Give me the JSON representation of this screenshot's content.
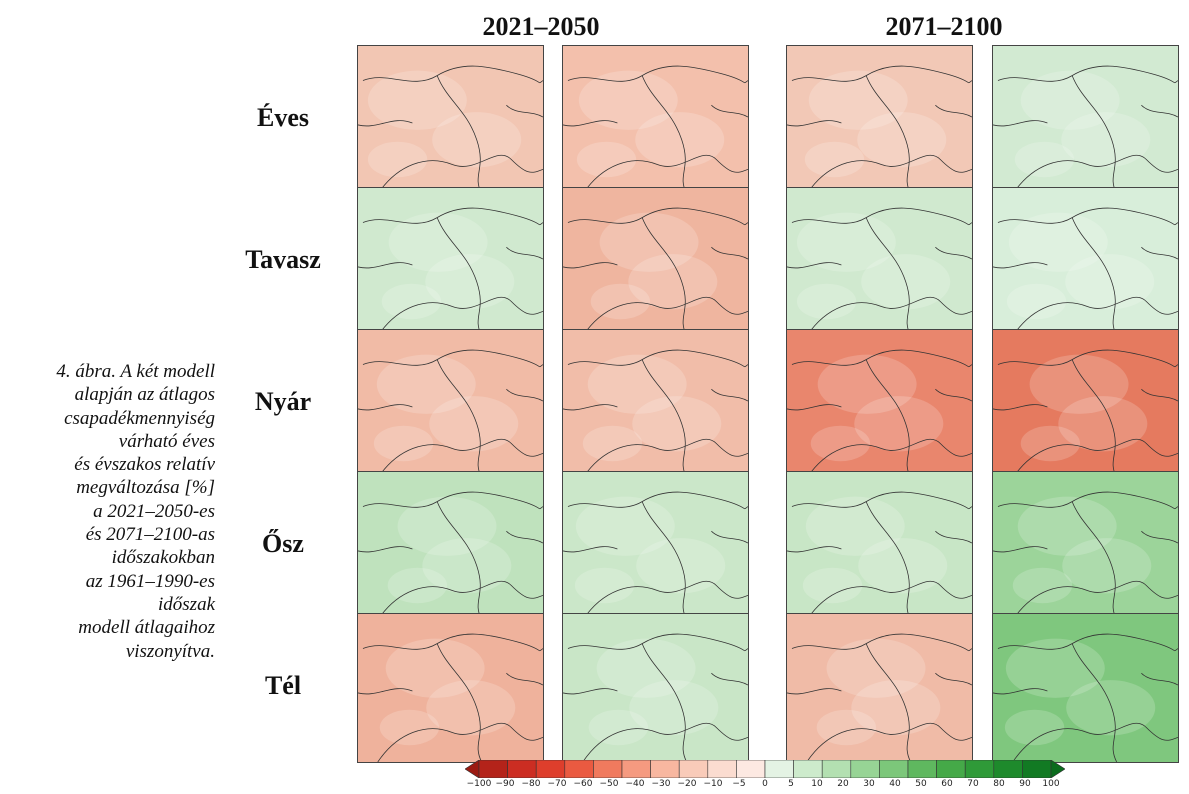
{
  "caption_lines": [
    "4. ábra. A két modell",
    "alapján az átlagos",
    "csapadékmennyiség",
    "várható éves",
    "és évszakos relatív",
    "megváltozása [%]",
    "a 2021–2050-es",
    "és 2071–2100-as",
    "időszakokban",
    "az 1961–1990-es",
    "időszak",
    "modell átlagaihoz",
    "viszonyítva."
  ],
  "periods": [
    "2021–2050",
    "2071–2100"
  ],
  "rows": [
    {
      "label": "Éves",
      "fills": [
        "#f2c6b3",
        "#f3c0ac",
        "#f2c8b6",
        "#d2ead2"
      ]
    },
    {
      "label": "Tavasz",
      "fills": [
        "#d0e9cf",
        "#efb59f",
        "#d0e9cf",
        "#d8eeda"
      ]
    },
    {
      "label": "Nyár",
      "fills": [
        "#f1bba6",
        "#f1bda9",
        "#e9866d",
        "#e57a5f"
      ]
    },
    {
      "label": "Ősz",
      "fills": [
        "#bfe2bd",
        "#cbe7c9",
        "#c8e6c6",
        "#9cd49a"
      ]
    },
    {
      "label": "Tél",
      "fills": [
        "#efb29c",
        "#c9e6c7",
        "#f0bba7",
        "#7fc77e"
      ]
    }
  ],
  "colorbar": {
    "labels": [
      "−100",
      "−90",
      "−80",
      "−70",
      "−60",
      "−50",
      "−40",
      "−30",
      "−20",
      "−10",
      "−5",
      "0",
      "5",
      "10",
      "20",
      "30",
      "40",
      "50",
      "60",
      "70",
      "80",
      "90",
      "100"
    ],
    "colors": [
      "#9b1b12",
      "#b4231a",
      "#cc2d22",
      "#de3e2c",
      "#ea5a41",
      "#f07a5e",
      "#f59a80",
      "#f8b7a0",
      "#f9cbb9",
      "#fbdcd0",
      "#fde9e2",
      "#e4f3e4",
      "#cdebcc",
      "#b3e0b1",
      "#97d495",
      "#7cc77a",
      "#5fb85f",
      "#45a948",
      "#2f9a38",
      "#1e8a2c",
      "#127a23",
      "#0b6b1d"
    ]
  }
}
